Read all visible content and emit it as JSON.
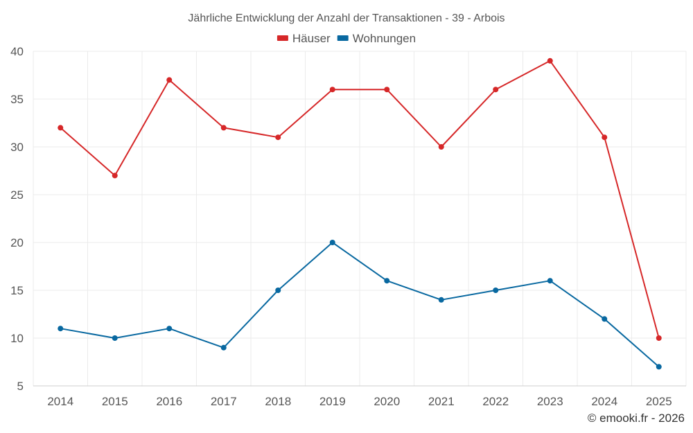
{
  "chart_data": {
    "type": "line",
    "title": "Jährliche Entwicklung der Anzahl der Transaktionen - 39 - Arbois",
    "categories": [
      "2014",
      "2015",
      "2016",
      "2017",
      "2018",
      "2019",
      "2020",
      "2021",
      "2022",
      "2023",
      "2024",
      "2025"
    ],
    "series": [
      {
        "name": "Häuser",
        "color": "#d62728",
        "values": [
          32,
          27,
          37,
          32,
          31,
          36,
          36,
          30,
          36,
          39,
          31,
          10
        ]
      },
      {
        "name": "Wohnungen",
        "color": "#0868a0",
        "values": [
          11,
          10,
          11,
          9,
          15,
          20,
          16,
          14,
          15,
          16,
          12,
          7
        ]
      }
    ],
    "ylim": [
      5,
      40
    ],
    "yticks": [
      5,
      10,
      15,
      20,
      25,
      30,
      35,
      40
    ],
    "grid": true,
    "legend": "top-center",
    "xlabel": "",
    "ylabel": ""
  },
  "credit": "© emooki.fr - 2026"
}
